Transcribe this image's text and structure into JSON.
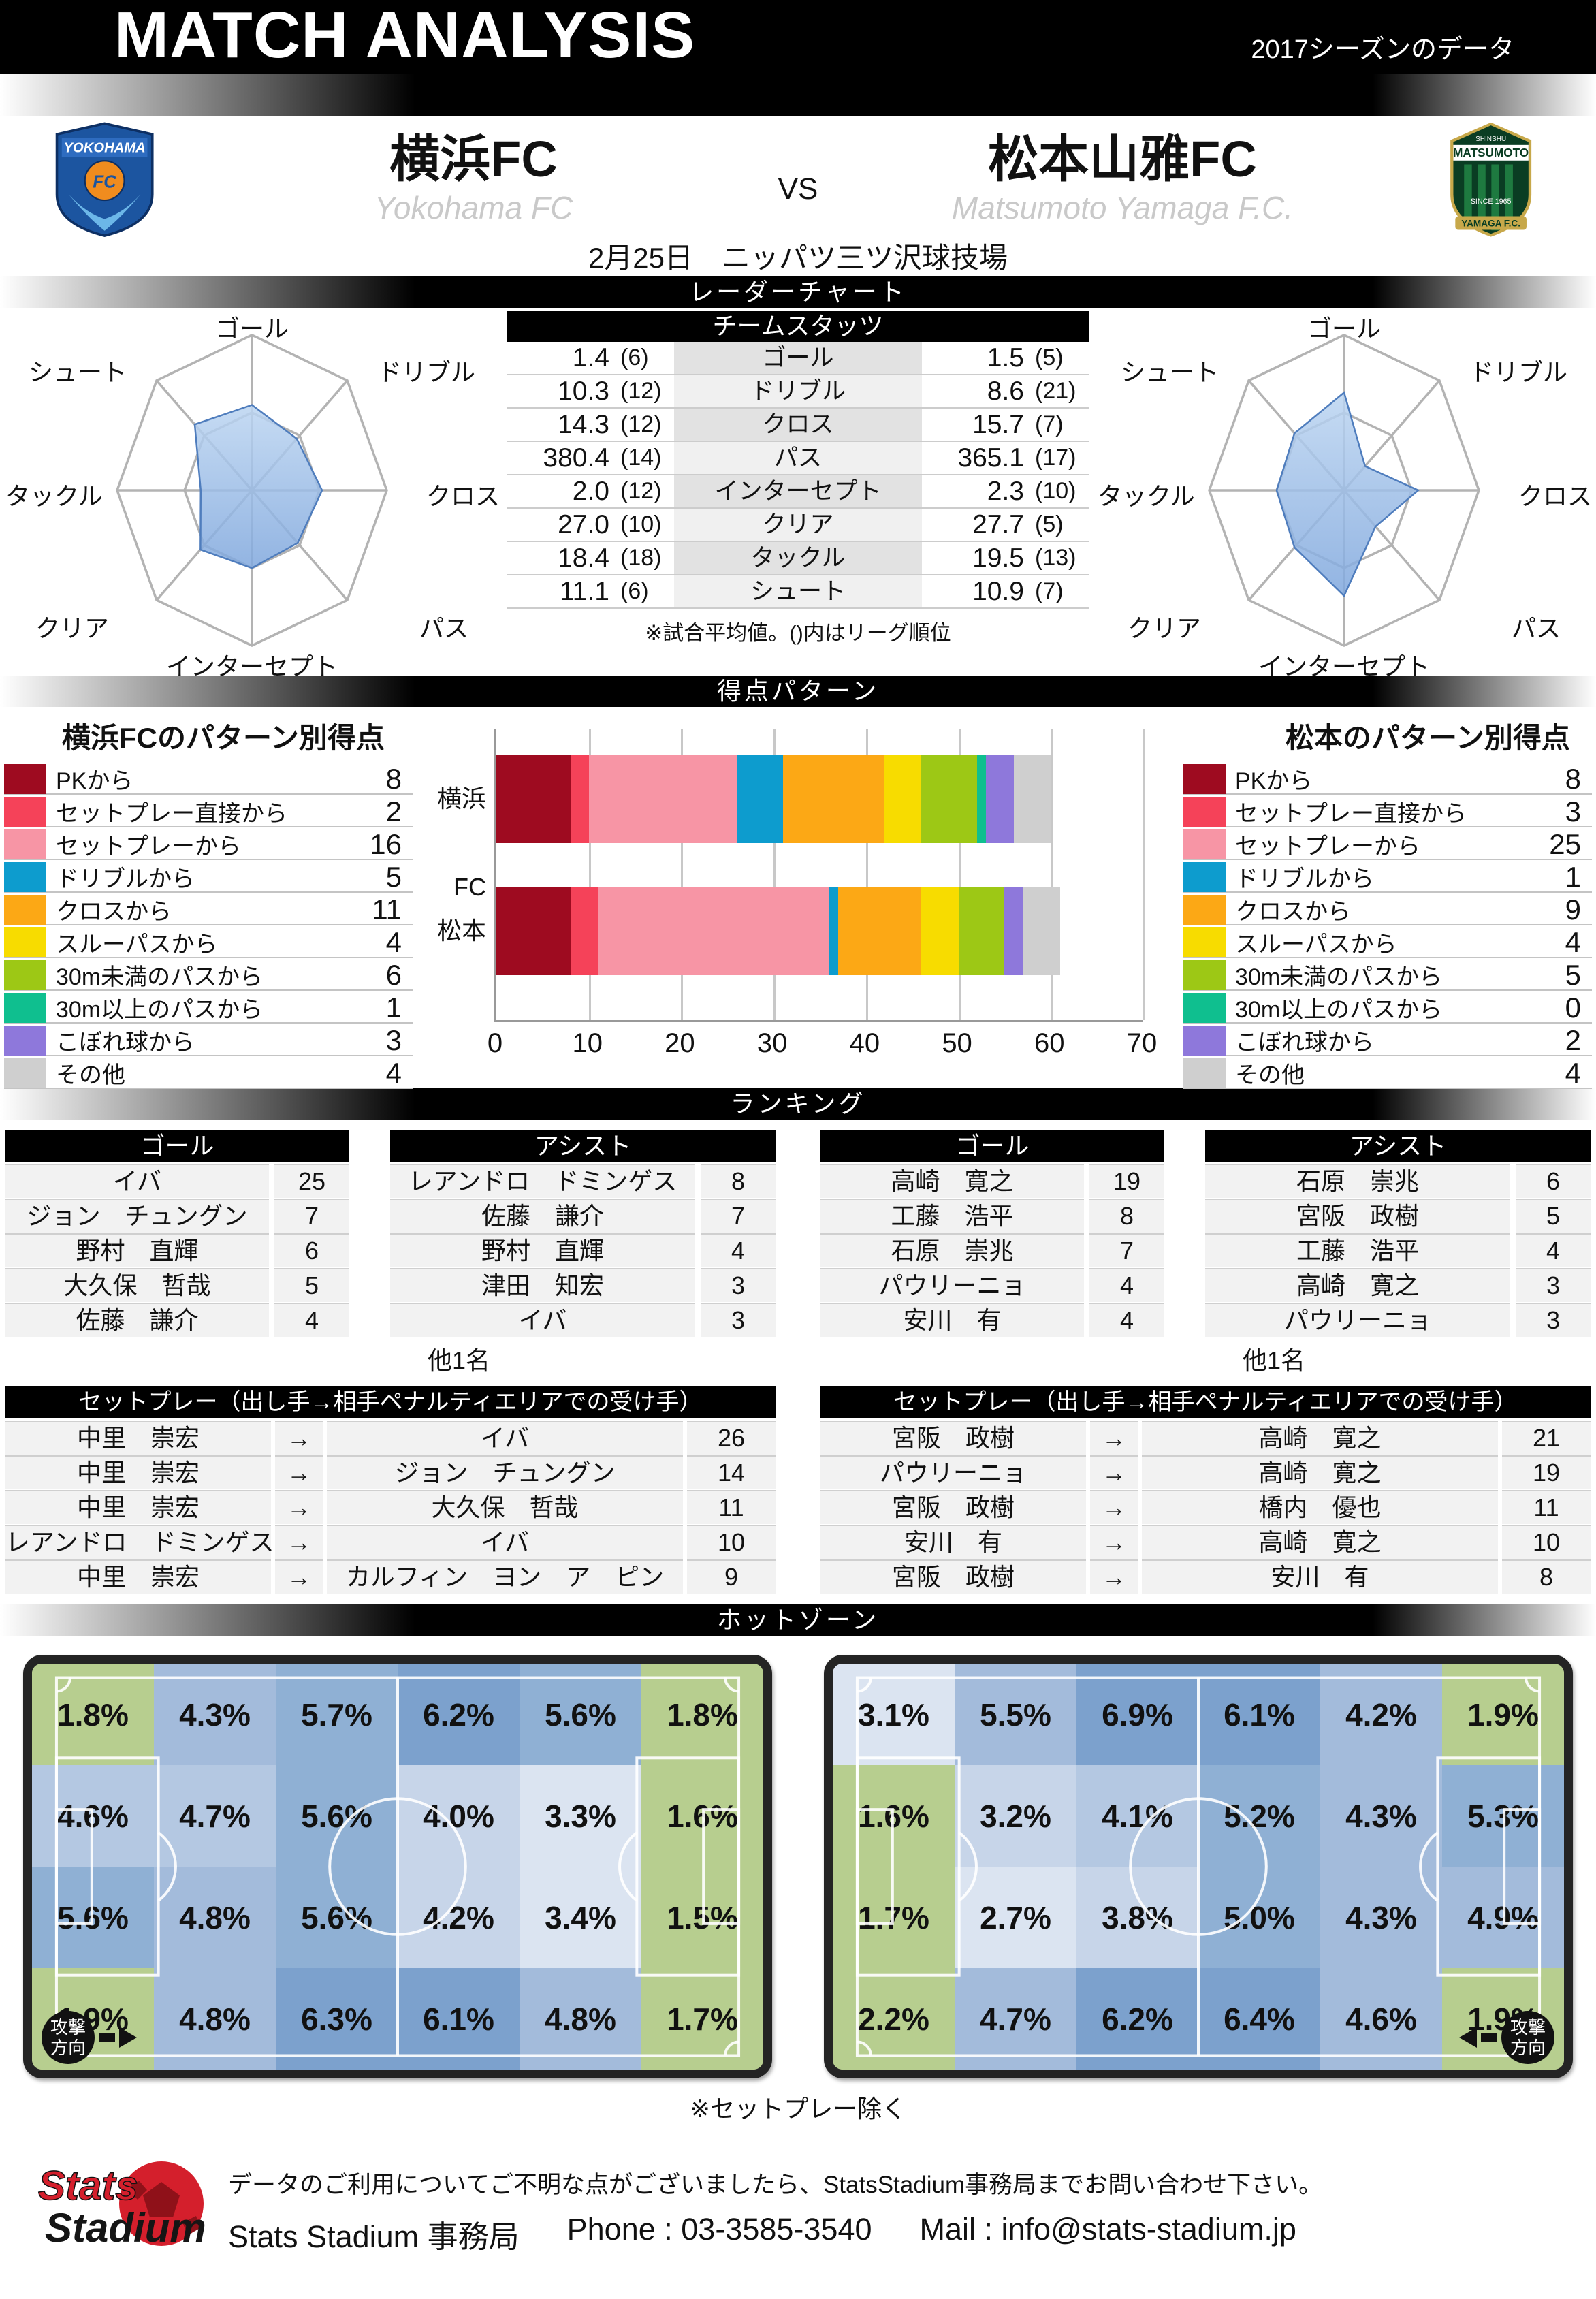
{
  "header": {
    "title": "MATCH ANALYSIS",
    "season_note": "2017シーズンのデータ"
  },
  "match": {
    "home_name": "横浜FC",
    "home_name_en": "Yokohama FC",
    "away_name": "松本山雅FC",
    "away_name_en": "Matsumoto Yamaga F.C.",
    "vs": "VS",
    "date_venue": "2月25日　ニッパツ三ツ沢球技場"
  },
  "logos": {
    "home": {
      "name": "YOKOHAMA",
      "fc": "FC"
    },
    "away": {
      "shinshu": "SHINSHU",
      "name": "MATSUMOTO",
      "since": "SINCE 1965",
      "ribbon": "YAMAGA F.C."
    }
  },
  "section_titles": {
    "radar": "レーダーチャート",
    "scoring": "得点パターン",
    "ranking": "ランキング",
    "hotzone": "ホットゾーン"
  },
  "team_stats": {
    "title": "チームスタッツ",
    "note": "※試合平均値。()内はリーグ順位",
    "rows": [
      {
        "label": "ゴール",
        "home": "1.4",
        "home_rank": "(6)",
        "away": "1.5",
        "away_rank": "(5)"
      },
      {
        "label": "ドリブル",
        "home": "10.3",
        "home_rank": "(12)",
        "away": "8.6",
        "away_rank": "(21)"
      },
      {
        "label": "クロス",
        "home": "14.3",
        "home_rank": "(12)",
        "away": "15.7",
        "away_rank": "(7)"
      },
      {
        "label": "パス",
        "home": "380.4",
        "home_rank": "(14)",
        "away": "365.1",
        "away_rank": "(17)"
      },
      {
        "label": "インターセプト",
        "home": "2.0",
        "home_rank": "(12)",
        "away": "2.3",
        "away_rank": "(10)"
      },
      {
        "label": "クリア",
        "home": "27.0",
        "home_rank": "(10)",
        "away": "27.7",
        "away_rank": "(5)"
      },
      {
        "label": "タックル",
        "home": "18.4",
        "home_rank": "(18)",
        "away": "19.5",
        "away_rank": "(13)"
      },
      {
        "label": "シュート",
        "home": "11.1",
        "home_rank": "(6)",
        "away": "10.9",
        "away_rank": "(7)"
      }
    ]
  },
  "scoring_patterns": {
    "home_title": "横浜FCのパターン別得点",
    "away_title": "松本のパターン別得点",
    "rows": [
      {
        "label": "PKから",
        "color": "#9E0B20",
        "home": "8",
        "away": "8"
      },
      {
        "label": "セットプレー直接から",
        "color": "#F54259",
        "home": "2",
        "away": "3"
      },
      {
        "label": "セットプレーから",
        "color": "#F795A5",
        "home": "16",
        "away": "25"
      },
      {
        "label": "ドリブルから",
        "color": "#0D9CCE",
        "home": "5",
        "away": "1"
      },
      {
        "label": "クロスから",
        "color": "#FCA815",
        "home": "11",
        "away": "9"
      },
      {
        "label": "スルーパスから",
        "color": "#F7DC00",
        "home": "4",
        "away": "4"
      },
      {
        "label": "30m未満のパスから",
        "color": "#9DC815",
        "home": "6",
        "away": "5"
      },
      {
        "label": "30m以上のパスから",
        "color": "#0FBF8F",
        "home": "1",
        "away": "0"
      },
      {
        "label": "こぼれ球から",
        "color": "#8E78DB",
        "home": "3",
        "away": "2"
      },
      {
        "label": "その他",
        "color": "#CFCFCF",
        "home": "4",
        "away": "4"
      }
    ]
  },
  "rankings": {
    "goal_title": "ゴール",
    "assist_title": "アシスト",
    "more": "他1名",
    "arrow": "→",
    "setplay_title": "セットプレー（出し手→相手ペナルティエリアでの受け手）",
    "home_goal": [
      {
        "name": "イバ",
        "value": "25"
      },
      {
        "name": "ジョン　チュングン",
        "value": "7"
      },
      {
        "name": "野村　直輝",
        "value": "6"
      },
      {
        "name": "大久保　哲哉",
        "value": "5"
      },
      {
        "name": "佐藤　謙介",
        "value": "4"
      }
    ],
    "home_assist": [
      {
        "name": "レアンドロ　ドミンゲス",
        "value": "8"
      },
      {
        "name": "佐藤　謙介",
        "value": "7"
      },
      {
        "name": "野村　直輝",
        "value": "4"
      },
      {
        "name": "津田　知宏",
        "value": "3"
      },
      {
        "name": "イバ",
        "value": "3"
      }
    ],
    "away_goal": [
      {
        "name": "高崎　寛之",
        "value": "19"
      },
      {
        "name": "工藤　浩平",
        "value": "8"
      },
      {
        "name": "石原　崇兆",
        "value": "7"
      },
      {
        "name": "パウリーニョ",
        "value": "4"
      },
      {
        "name": "安川　有",
        "value": "4"
      }
    ],
    "away_assist": [
      {
        "name": "石原　崇兆",
        "value": "6"
      },
      {
        "name": "宮阪　政樹",
        "value": "5"
      },
      {
        "name": "工藤　浩平",
        "value": "4"
      },
      {
        "name": "高崎　寛之",
        "value": "3"
      },
      {
        "name": "パウリーニョ",
        "value": "3"
      }
    ],
    "home_setplay": [
      {
        "from": "中里　崇宏",
        "to": "イバ",
        "value": "26"
      },
      {
        "from": "中里　崇宏",
        "to": "ジョン　チュングン",
        "value": "14"
      },
      {
        "from": "中里　崇宏",
        "to": "大久保　哲哉",
        "value": "11"
      },
      {
        "from": "レアンドロ　ドミンゲス",
        "to": "イバ",
        "value": "10"
      },
      {
        "from": "中里　崇宏",
        "to": "カルフィン　ヨン　ア　ピン",
        "value": "9"
      }
    ],
    "away_setplay": [
      {
        "from": "宮阪　政樹",
        "to": "高崎　寛之",
        "value": "21"
      },
      {
        "from": "パウリーニョ",
        "to": "高崎　寛之",
        "value": "19"
      },
      {
        "from": "宮阪　政樹",
        "to": "橋内　優也",
        "value": "11"
      },
      {
        "from": "安川　有",
        "to": "高崎　寛之",
        "value": "10"
      },
      {
        "from": "宮阪　政樹",
        "to": "安川　有",
        "value": "8"
      }
    ]
  },
  "hotzones": {
    "note": "※セットプレー除く",
    "attack_label": "攻撃方向",
    "palette": {
      "g": "#b7ce8f",
      "b0": "#dbe4f1",
      "b1": "#c7d5e9",
      "b2": "#b4c8e2",
      "b3": "#a3bbdb",
      "b4": "#8fb0d4",
      "b5": "#7ca1cd"
    }
  },
  "footer": {
    "logo_line1": "Stats",
    "logo_line2": "Stadium",
    "contact_note": "データのご利用についてご不明な点がございましたら、StatsStadium事務局までお問い合わせ下さい。",
    "office": "Stats Stadium 事務局",
    "phone": "Phone : 03-3585-3540",
    "mail": "Mail : info@stats-stadium.jp"
  },
  "chart_data": [
    {
      "type": "radar",
      "team": "横浜FC",
      "axes": [
        "ゴール",
        "ドリブル",
        "クロス",
        "パス",
        "インターセプト",
        "クリア",
        "タックル",
        "シュート"
      ],
      "values": [
        0.55,
        0.47,
        0.52,
        0.48,
        0.5,
        0.54,
        0.38,
        0.6
      ],
      "scale": "0-1 (相対値)"
    },
    {
      "type": "radar",
      "team": "松本山雅FC",
      "axes": [
        "ゴール",
        "ドリブル",
        "クロス",
        "パス",
        "インターセプト",
        "クリア",
        "タックル",
        "シュート"
      ],
      "values": [
        0.63,
        0.22,
        0.55,
        0.33,
        0.68,
        0.52,
        0.5,
        0.52
      ],
      "scale": "0-1 (相対値)"
    },
    {
      "type": "bar",
      "subtype": "stacked-horizontal",
      "title": "得点パターン",
      "categories": [
        "横浜FC",
        "松本"
      ],
      "xlim": [
        0,
        70
      ],
      "xticks": [
        0,
        10,
        20,
        30,
        40,
        50,
        60,
        70
      ],
      "series": [
        {
          "name": "PKから",
          "color": "#9E0B20",
          "values": [
            8,
            8
          ]
        },
        {
          "name": "セットプレー直接から",
          "color": "#F54259",
          "values": [
            2,
            3
          ]
        },
        {
          "name": "セットプレーから",
          "color": "#F795A5",
          "values": [
            16,
            25
          ]
        },
        {
          "name": "ドリブルから",
          "color": "#0D9CCE",
          "values": [
            5,
            1
          ]
        },
        {
          "name": "クロスから",
          "color": "#FCA815",
          "values": [
            11,
            9
          ]
        },
        {
          "name": "スルーパスから",
          "color": "#F7DC00",
          "values": [
            4,
            4
          ]
        },
        {
          "name": "30m未満のパスから",
          "color": "#9DC815",
          "values": [
            6,
            5
          ]
        },
        {
          "name": "30m以上のパスから",
          "color": "#0FBF8F",
          "values": [
            1,
            0
          ]
        },
        {
          "name": "こぼれ球から",
          "color": "#8E78DB",
          "values": [
            3,
            2
          ]
        },
        {
          "name": "その他",
          "color": "#CFCFCF",
          "values": [
            4,
            4
          ]
        }
      ]
    },
    {
      "type": "heatmap",
      "team": "横浜FC",
      "rows": 4,
      "cols": 6,
      "values": [
        [
          "1.8%",
          "4.3%",
          "5.7%",
          "6.2%",
          "5.6%",
          "1.8%"
        ],
        [
          "4.6%",
          "4.7%",
          "5.6%",
          "4.0%",
          "3.3%",
          "1.6%"
        ],
        [
          "5.6%",
          "4.8%",
          "5.6%",
          "4.2%",
          "3.4%",
          "1.5%"
        ],
        [
          "1.9%",
          "4.8%",
          "6.3%",
          "6.1%",
          "4.8%",
          "1.7%"
        ]
      ],
      "colors": [
        [
          "g",
          "b3",
          "b4",
          "b5",
          "b4",
          "g"
        ],
        [
          "b2",
          "b2",
          "b4",
          "b1",
          "b0",
          "g"
        ],
        [
          "b4",
          "b3",
          "b4",
          "b1",
          "b0",
          "g"
        ],
        [
          "g",
          "b3",
          "b5",
          "b5",
          "b3",
          "g"
        ]
      ]
    },
    {
      "type": "heatmap",
      "team": "松本山雅FC",
      "rows": 4,
      "cols": 6,
      "values": [
        [
          "3.1%",
          "5.5%",
          "6.9%",
          "6.1%",
          "4.2%",
          "1.9%"
        ],
        [
          "1.6%",
          "3.2%",
          "4.1%",
          "5.2%",
          "4.3%",
          "5.3%"
        ],
        [
          "1.7%",
          "2.7%",
          "3.8%",
          "5.0%",
          "4.3%",
          "4.9%"
        ],
        [
          "2.2%",
          "4.7%",
          "6.2%",
          "6.4%",
          "4.6%",
          "1.9%"
        ]
      ],
      "colors": [
        [
          "b0",
          "b3",
          "b5",
          "b5",
          "b3",
          "g"
        ],
        [
          "g",
          "b1",
          "b2",
          "b4",
          "b3",
          "b4"
        ],
        [
          "g",
          "b0",
          "b1",
          "b4",
          "b3",
          "b3"
        ],
        [
          "g",
          "b3",
          "b5",
          "b5",
          "b3",
          "g"
        ]
      ]
    }
  ]
}
